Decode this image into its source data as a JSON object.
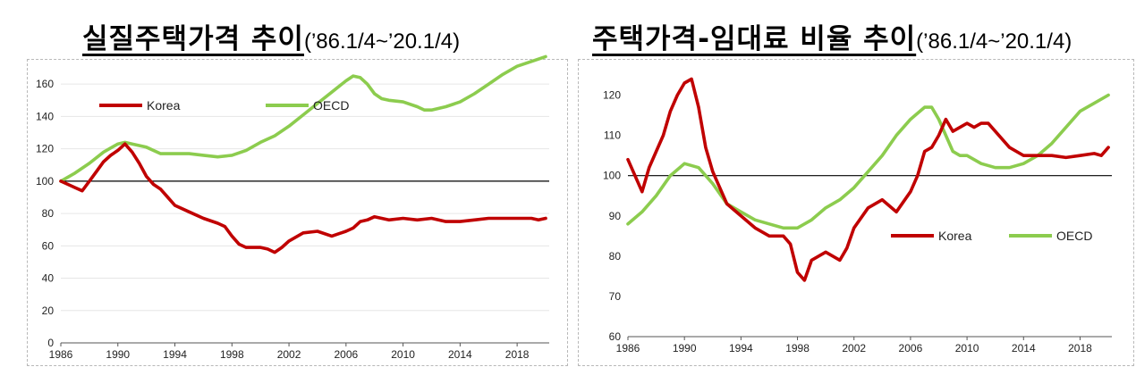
{
  "titles": {
    "left_main": "실질주택가격  추이",
    "left_sub": "(’86.1/4~’20.1/4)",
    "right_main": "주택가격-임대료 비율 추이",
    "right_sub": "(’86.1/4~’20.1/4)"
  },
  "colors": {
    "korea": "#c00000",
    "oecd": "#8ccc4e",
    "baseline": "#000000"
  },
  "chart_data": [
    {
      "type": "line",
      "title": "실질주택가격  추이(’86.1/4~’20.1/4)",
      "xlabel": "",
      "ylabel": "",
      "xlim": [
        1986,
        2020.25
      ],
      "ylim": [
        0,
        175
      ],
      "x_ticks": [
        1986,
        1990,
        1994,
        1998,
        2002,
        2006,
        2010,
        2014,
        2018
      ],
      "y_ticks": [
        0,
        20,
        40,
        60,
        80,
        100,
        120,
        140,
        160
      ],
      "baseline": 100,
      "grid": true,
      "legend": "top-left",
      "series": [
        {
          "name": "Korea",
          "color": "#c00000",
          "points": [
            [
              1986,
              100
            ],
            [
              1986.5,
              98
            ],
            [
              1987,
              96
            ],
            [
              1987.5,
              94
            ],
            [
              1988,
              100
            ],
            [
              1988.5,
              106
            ],
            [
              1989,
              112
            ],
            [
              1989.5,
              116
            ],
            [
              1990,
              119
            ],
            [
              1990.5,
              123
            ],
            [
              1991,
              118
            ],
            [
              1991.5,
              111
            ],
            [
              1992,
              103
            ],
            [
              1992.5,
              98
            ],
            [
              1993,
              95
            ],
            [
              1993.5,
              90
            ],
            [
              1994,
              85
            ],
            [
              1995,
              81
            ],
            [
              1996,
              77
            ],
            [
              1997,
              74
            ],
            [
              1997.5,
              72
            ],
            [
              1998,
              66
            ],
            [
              1998.5,
              61
            ],
            [
              1999,
              59
            ],
            [
              2000,
              59
            ],
            [
              2000.5,
              58
            ],
            [
              2001,
              56
            ],
            [
              2001.5,
              59
            ],
            [
              2002,
              63
            ],
            [
              2003,
              68
            ],
            [
              2004,
              69
            ],
            [
              2005,
              66
            ],
            [
              2006,
              69
            ],
            [
              2006.5,
              71
            ],
            [
              2007,
              75
            ],
            [
              2007.5,
              76
            ],
            [
              2008,
              78
            ],
            [
              2009,
              76
            ],
            [
              2010,
              77
            ],
            [
              2011,
              76
            ],
            [
              2012,
              77
            ],
            [
              2013,
              75
            ],
            [
              2014,
              75
            ],
            [
              2015,
              76
            ],
            [
              2016,
              77
            ],
            [
              2017,
              77
            ],
            [
              2018,
              77
            ],
            [
              2019,
              77
            ],
            [
              2019.5,
              76
            ],
            [
              2020,
              77
            ]
          ]
        },
        {
          "name": "OECD",
          "color": "#8ccc4e",
          "points": [
            [
              1986,
              100
            ],
            [
              1987,
              105
            ],
            [
              1988,
              111
            ],
            [
              1989,
              118
            ],
            [
              1990,
              123
            ],
            [
              1990.5,
              124
            ],
            [
              1991,
              123
            ],
            [
              1992,
              121
            ],
            [
              1993,
              117
            ],
            [
              1994,
              117
            ],
            [
              1995,
              117
            ],
            [
              1996,
              116
            ],
            [
              1997,
              115
            ],
            [
              1998,
              116
            ],
            [
              1999,
              119
            ],
            [
              2000,
              124
            ],
            [
              2001,
              128
            ],
            [
              2002,
              134
            ],
            [
              2003,
              141
            ],
            [
              2004,
              148
            ],
            [
              2005,
              155
            ],
            [
              2006,
              162
            ],
            [
              2006.5,
              165
            ],
            [
              2007,
              164
            ],
            [
              2007.5,
              160
            ],
            [
              2008,
              154
            ],
            [
              2008.5,
              151
            ],
            [
              2009,
              150
            ],
            [
              2010,
              149
            ],
            [
              2011,
              146
            ],
            [
              2011.5,
              144
            ],
            [
              2012,
              144
            ],
            [
              2013,
              146
            ],
            [
              2014,
              149
            ],
            [
              2015,
              154
            ],
            [
              2016,
              160
            ],
            [
              2017,
              166
            ],
            [
              2018,
              171
            ],
            [
              2019,
              174
            ],
            [
              2020,
              177
            ]
          ]
        }
      ]
    },
    {
      "type": "line",
      "title": "주택가격-임대료 비율 추이(’86.1/4~’20.1/4)",
      "xlabel": "",
      "ylabel": "",
      "xlim": [
        1986,
        2020.25
      ],
      "ylim": [
        60,
        125
      ],
      "x_ticks": [
        1986,
        1990,
        1994,
        1998,
        2002,
        2006,
        2010,
        2014,
        2018
      ],
      "y_ticks": [
        60,
        70,
        80,
        90,
        100,
        110,
        120
      ],
      "baseline": 100,
      "grid": false,
      "legend": "bottom-right",
      "series": [
        {
          "name": "Korea",
          "color": "#c00000",
          "points": [
            [
              1986,
              104
            ],
            [
              1986.5,
              100
            ],
            [
              1987,
              96
            ],
            [
              1987.5,
              102
            ],
            [
              1988,
              106
            ],
            [
              1988.5,
              110
            ],
            [
              1989,
              116
            ],
            [
              1989.5,
              120
            ],
            [
              1990,
              123
            ],
            [
              1990.5,
              124
            ],
            [
              1991,
              117
            ],
            [
              1991.5,
              107
            ],
            [
              1992,
              101
            ],
            [
              1993,
              93
            ],
            [
              1994,
              90
            ],
            [
              1995,
              87
            ],
            [
              1996,
              85
            ],
            [
              1997,
              85
            ],
            [
              1997.5,
              83
            ],
            [
              1998,
              76
            ],
            [
              1998.5,
              74
            ],
            [
              1999,
              79
            ],
            [
              2000,
              81
            ],
            [
              2001,
              79
            ],
            [
              2001.5,
              82
            ],
            [
              2002,
              87
            ],
            [
              2003,
              92
            ],
            [
              2004,
              94
            ],
            [
              2005,
              91
            ],
            [
              2006,
              96
            ],
            [
              2006.5,
              100
            ],
            [
              2007,
              106
            ],
            [
              2007.5,
              107
            ],
            [
              2008,
              110
            ],
            [
              2008.5,
              114
            ],
            [
              2009,
              111
            ],
            [
              2010,
              113
            ],
            [
              2010.5,
              112
            ],
            [
              2011,
              113
            ],
            [
              2011.5,
              113
            ],
            [
              2012,
              111
            ],
            [
              2013,
              107
            ],
            [
              2014,
              105
            ],
            [
              2015,
              105
            ],
            [
              2016,
              105
            ],
            [
              2017,
              104.5
            ],
            [
              2018,
              105
            ],
            [
              2019,
              105.5
            ],
            [
              2019.5,
              105
            ],
            [
              2020,
              107
            ]
          ]
        },
        {
          "name": "OECD",
          "color": "#8ccc4e",
          "points": [
            [
              1986,
              88
            ],
            [
              1987,
              91
            ],
            [
              1988,
              95
            ],
            [
              1989,
              100
            ],
            [
              1990,
              103
            ],
            [
              1991,
              102
            ],
            [
              1992,
              98
            ],
            [
              1993,
              93
            ],
            [
              1994,
              91
            ],
            [
              1995,
              89
            ],
            [
              1996,
              88
            ],
            [
              1997,
              87
            ],
            [
              1998,
              87
            ],
            [
              1999,
              89
            ],
            [
              2000,
              92
            ],
            [
              2001,
              94
            ],
            [
              2002,
              97
            ],
            [
              2003,
              101
            ],
            [
              2004,
              105
            ],
            [
              2005,
              110
            ],
            [
              2006,
              114
            ],
            [
              2007,
              117
            ],
            [
              2007.5,
              117
            ],
            [
              2008,
              114
            ],
            [
              2008.5,
              110
            ],
            [
              2009,
              106
            ],
            [
              2009.5,
              105
            ],
            [
              2010,
              105
            ],
            [
              2011,
              103
            ],
            [
              2012,
              102
            ],
            [
              2013,
              102
            ],
            [
              2014,
              103
            ],
            [
              2015,
              105
            ],
            [
              2016,
              108
            ],
            [
              2017,
              112
            ],
            [
              2018,
              116
            ],
            [
              2019,
              118
            ],
            [
              2020,
              120
            ]
          ]
        }
      ]
    }
  ]
}
